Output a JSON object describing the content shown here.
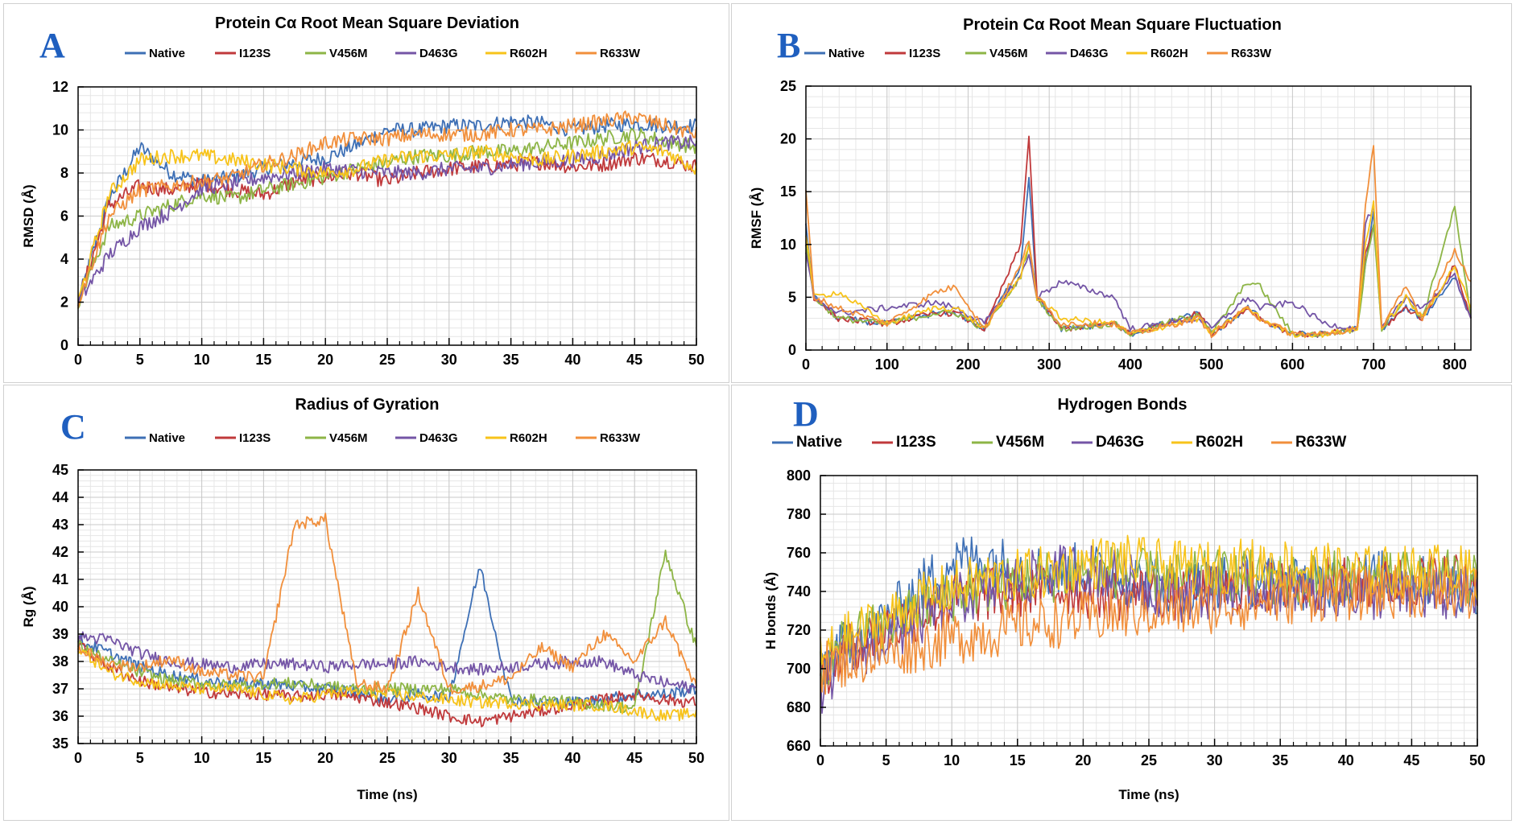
{
  "panels": [
    {
      "letter": "A"
    },
    {
      "letter": "B"
    },
    {
      "letter": "C"
    },
    {
      "letter": "D"
    }
  ],
  "series_colors": {
    "Native": "#3d6fb5",
    "I123S": "#c0393b",
    "V456M": "#8db546",
    "D463G": "#7455a6",
    "R602H": "#f7c31a",
    "R633W": "#f18f3b"
  },
  "chart_data": [
    {
      "type": "line",
      "title": "Protein Cα Root Mean Square Deviation",
      "xlabel": "",
      "ylabel": "RMSD (Å)",
      "xlim": [
        0,
        50
      ],
      "ylim": [
        0,
        12
      ],
      "x_ticks": [
        0,
        5,
        10,
        15,
        20,
        25,
        30,
        35,
        40,
        45,
        50
      ],
      "y_ticks": [
        0,
        2,
        4,
        6,
        8,
        10,
        12
      ],
      "grid": true,
      "legend_position": "top",
      "x": [
        0,
        2.5,
        5,
        7.5,
        10,
        12.5,
        15,
        17.5,
        20,
        22.5,
        25,
        27.5,
        30,
        32.5,
        35,
        37.5,
        40,
        42.5,
        45,
        47.5,
        50
      ],
      "series": [
        {
          "name": "Native",
          "values": [
            2.0,
            6.8,
            9.2,
            8.0,
            7.6,
            7.8,
            8.2,
            8.5,
            8.7,
            9.3,
            10.0,
            10.0,
            10.2,
            10.2,
            10.4,
            10.3,
            10.0,
            10.2,
            10.3,
            10.2,
            10.2
          ]
        },
        {
          "name": "I123S",
          "values": [
            2.0,
            6.5,
            7.4,
            7.2,
            7.5,
            7.2,
            7.0,
            7.6,
            7.8,
            8.0,
            7.6,
            8.0,
            8.2,
            8.3,
            8.4,
            8.5,
            8.3,
            8.4,
            8.7,
            8.6,
            8.3
          ]
        },
        {
          "name": "V456M",
          "values": [
            2.0,
            5.5,
            6.0,
            6.5,
            7.0,
            6.8,
            7.2,
            7.5,
            7.8,
            8.2,
            8.5,
            8.8,
            8.8,
            9.0,
            9.0,
            9.2,
            9.4,
            9.6,
            9.8,
            9.5,
            9.2
          ]
        },
        {
          "name": "D463G",
          "values": [
            2.0,
            4.2,
            5.5,
            6.2,
            7.3,
            7.5,
            7.8,
            8.0,
            8.2,
            8.1,
            8.0,
            8.0,
            8.2,
            8.2,
            8.4,
            8.5,
            8.6,
            8.8,
            9.2,
            9.4,
            9.4
          ]
        },
        {
          "name": "R602H",
          "values": [
            2.0,
            7.0,
            8.6,
            8.8,
            8.8,
            8.6,
            8.4,
            8.2,
            8.0,
            8.2,
            8.6,
            8.8,
            8.8,
            9.0,
            8.8,
            8.6,
            8.8,
            9.0,
            9.2,
            9.0,
            8.2
          ]
        },
        {
          "name": "R633W",
          "values": [
            2.0,
            6.0,
            7.2,
            7.4,
            7.6,
            7.8,
            8.4,
            8.8,
            9.4,
            9.6,
            9.6,
            9.8,
            9.8,
            9.8,
            10.0,
            10.0,
            10.2,
            10.4,
            10.6,
            10.2,
            9.8
          ]
        }
      ]
    },
    {
      "type": "line",
      "title": "Protein Cα Root Mean Square Fluctuation",
      "xlabel": "",
      "ylabel": "RMSF (Å)",
      "xlim": [
        0,
        820
      ],
      "ylim": [
        0,
        25
      ],
      "x_ticks": [
        0,
        100,
        200,
        300,
        400,
        500,
        600,
        700,
        800
      ],
      "y_ticks": [
        0,
        5,
        10,
        15,
        20,
        25
      ],
      "grid": true,
      "legend_position": "top",
      "x": [
        0,
        10,
        40,
        100,
        160,
        185,
        220,
        265,
        275,
        285,
        315,
        380,
        400,
        485,
        500,
        545,
        560,
        600,
        640,
        680,
        690,
        700,
        710,
        740,
        760,
        800,
        820
      ],
      "series": [
        {
          "name": "Native",
          "values": [
            12,
            5,
            3,
            2.5,
            3.5,
            3.5,
            2,
            8,
            16.5,
            5,
            2,
            2.5,
            1.5,
            3.5,
            1.5,
            4,
            3,
            1.5,
            1.5,
            2,
            8,
            13,
            2,
            4,
            3,
            7,
            3
          ]
        },
        {
          "name": "I123S",
          "values": [
            10,
            5,
            3,
            2.5,
            3.5,
            3.5,
            2,
            10,
            20.5,
            5,
            2,
            2.5,
            1.5,
            3.5,
            1.5,
            4,
            3,
            1.5,
            1.5,
            2,
            9,
            12,
            2,
            4,
            3,
            8,
            3
          ]
        },
        {
          "name": "V456M",
          "values": [
            10,
            5,
            3,
            2.5,
            3.5,
            3.5,
            2,
            7,
            10,
            5,
            2,
            2.5,
            1.5,
            3.5,
            1.5,
            6.5,
            6,
            1.5,
            1.5,
            2,
            8,
            12,
            2,
            5,
            3,
            13.5,
            3
          ]
        },
        {
          "name": "D463G",
          "values": [
            9,
            5,
            3.5,
            4,
            4.5,
            4,
            2.5,
            7,
            9,
            5,
            6.5,
            5,
            2,
            3,
            2,
            5,
            4,
            4.5,
            2.5,
            2,
            12,
            13.5,
            2,
            5,
            4,
            7,
            3
          ]
        },
        {
          "name": "R602H",
          "values": [
            11,
            5,
            5.5,
            2.5,
            4,
            4,
            2,
            7,
            10,
            5,
            3,
            2.5,
            1.5,
            3,
            1.5,
            4,
            3,
            1.5,
            1.5,
            2,
            10,
            14,
            2,
            5,
            3,
            8,
            4
          ]
        },
        {
          "name": "R633W",
          "values": [
            15,
            5,
            4,
            2.5,
            5.5,
            6,
            2,
            8,
            10.5,
            5,
            2.5,
            2.5,
            1.5,
            3,
            1.5,
            4,
            3,
            1.5,
            1.5,
            2,
            14,
            19.5,
            2,
            6,
            3,
            9.5,
            6.5
          ]
        }
      ]
    },
    {
      "type": "line",
      "title": "Radius of Gyration",
      "xlabel": "Time (ns)",
      "ylabel": "Rg (Å)",
      "xlim": [
        0,
        50
      ],
      "ylim": [
        35,
        45
      ],
      "x_ticks": [
        0,
        5,
        10,
        15,
        20,
        25,
        30,
        35,
        40,
        45,
        50
      ],
      "y_ticks": [
        35,
        36,
        37,
        38,
        39,
        40,
        41,
        42,
        43,
        44,
        45
      ],
      "grid": true,
      "legend_position": "top",
      "x": [
        0,
        2.5,
        5,
        7.5,
        10,
        12.5,
        15,
        17.5,
        20,
        22.5,
        25,
        27.5,
        30,
        32.5,
        35,
        37.5,
        40,
        42.5,
        45,
        47.5,
        50
      ],
      "series": [
        {
          "name": "Native",
          "values": [
            38.8,
            38.3,
            37.8,
            37.5,
            37.3,
            37.2,
            37.2,
            37.1,
            37.0,
            36.9,
            36.6,
            36.8,
            36.7,
            41.5,
            36.6,
            36.5,
            36.5,
            36.6,
            36.8,
            36.8,
            37.0
          ]
        },
        {
          "name": "I123S",
          "values": [
            38.6,
            37.8,
            37.3,
            37.0,
            36.9,
            36.8,
            36.8,
            36.7,
            36.8,
            36.7,
            36.5,
            36.3,
            36.0,
            35.8,
            36.0,
            36.2,
            36.4,
            36.6,
            36.8,
            36.6,
            36.5
          ]
        },
        {
          "name": "V456M",
          "values": [
            38.6,
            38.0,
            37.6,
            37.3,
            37.2,
            37.1,
            37.2,
            37.2,
            37.1,
            37.0,
            37.0,
            37.0,
            37.0,
            36.8,
            36.6,
            36.6,
            36.5,
            36.4,
            36.3,
            42.0,
            38.5
          ]
        },
        {
          "name": "D463G",
          "values": [
            38.9,
            38.8,
            38.3,
            38.0,
            37.9,
            37.8,
            37.9,
            37.9,
            37.8,
            37.9,
            37.9,
            38.0,
            37.8,
            37.7,
            37.8,
            37.9,
            38.0,
            38.0,
            37.5,
            37.2,
            37.0
          ]
        },
        {
          "name": "R602H",
          "values": [
            38.5,
            37.6,
            37.3,
            37.1,
            37.0,
            37.0,
            36.8,
            36.6,
            36.8,
            36.9,
            36.8,
            36.7,
            36.6,
            36.5,
            36.5,
            36.4,
            36.4,
            36.4,
            36.2,
            36.0,
            36.1
          ]
        },
        {
          "name": "R633W",
          "values": [
            38.5,
            37.9,
            37.8,
            38.1,
            37.6,
            37.5,
            37.4,
            43.0,
            43.2,
            37.2,
            37.0,
            40.5,
            37.0,
            37.1,
            37.4,
            38.5,
            37.8,
            39.0,
            38.0,
            39.5,
            37.0
          ]
        }
      ]
    },
    {
      "type": "line",
      "title": "Hydrogen Bonds",
      "xlabel": "Time (ns)",
      "ylabel": "H bonds (Å)",
      "xlim": [
        0,
        50
      ],
      "ylim": [
        660,
        800
      ],
      "x_ticks": [
        0,
        5,
        10,
        15,
        20,
        25,
        30,
        35,
        40,
        45,
        50
      ],
      "y_ticks": [
        660,
        680,
        700,
        720,
        740,
        760,
        780,
        800
      ],
      "grid": true,
      "legend_position": "top",
      "x": [
        0,
        2.5,
        5,
        7.5,
        10,
        12.5,
        15,
        17.5,
        20,
        22.5,
        25,
        27.5,
        30,
        32.5,
        35,
        37.5,
        40,
        42.5,
        45,
        47.5,
        50
      ],
      "series": [
        {
          "name": "Native",
          "values": [
            700,
            715,
            725,
            742,
            755,
            758,
            752,
            750,
            752,
            748,
            745,
            742,
            745,
            746,
            745,
            744,
            746,
            748,
            745,
            744,
            742
          ]
        },
        {
          "name": "I123S",
          "values": [
            695,
            712,
            720,
            728,
            735,
            738,
            740,
            742,
            740,
            738,
            740,
            738,
            740,
            742,
            742,
            744,
            744,
            744,
            745,
            748,
            745
          ]
        },
        {
          "name": "V456M",
          "values": [
            700,
            716,
            722,
            730,
            738,
            742,
            745,
            748,
            750,
            750,
            748,
            746,
            748,
            748,
            746,
            746,
            748,
            746,
            748,
            748,
            746
          ]
        },
        {
          "name": "D463G",
          "values": [
            690,
            708,
            715,
            725,
            735,
            740,
            745,
            750,
            752,
            748,
            742,
            738,
            740,
            742,
            742,
            740,
            740,
            738,
            738,
            738,
            738
          ]
        },
        {
          "name": "R602H",
          "values": [
            705,
            718,
            725,
            735,
            742,
            746,
            748,
            750,
            754,
            756,
            754,
            752,
            752,
            754,
            754,
            752,
            750,
            750,
            750,
            752,
            748
          ]
        },
        {
          "name": "R633W",
          "values": [
            700,
            705,
            708,
            712,
            716,
            718,
            722,
            724,
            726,
            728,
            730,
            730,
            732,
            734,
            736,
            738,
            738,
            740,
            740,
            740,
            738
          ]
        }
      ]
    }
  ]
}
